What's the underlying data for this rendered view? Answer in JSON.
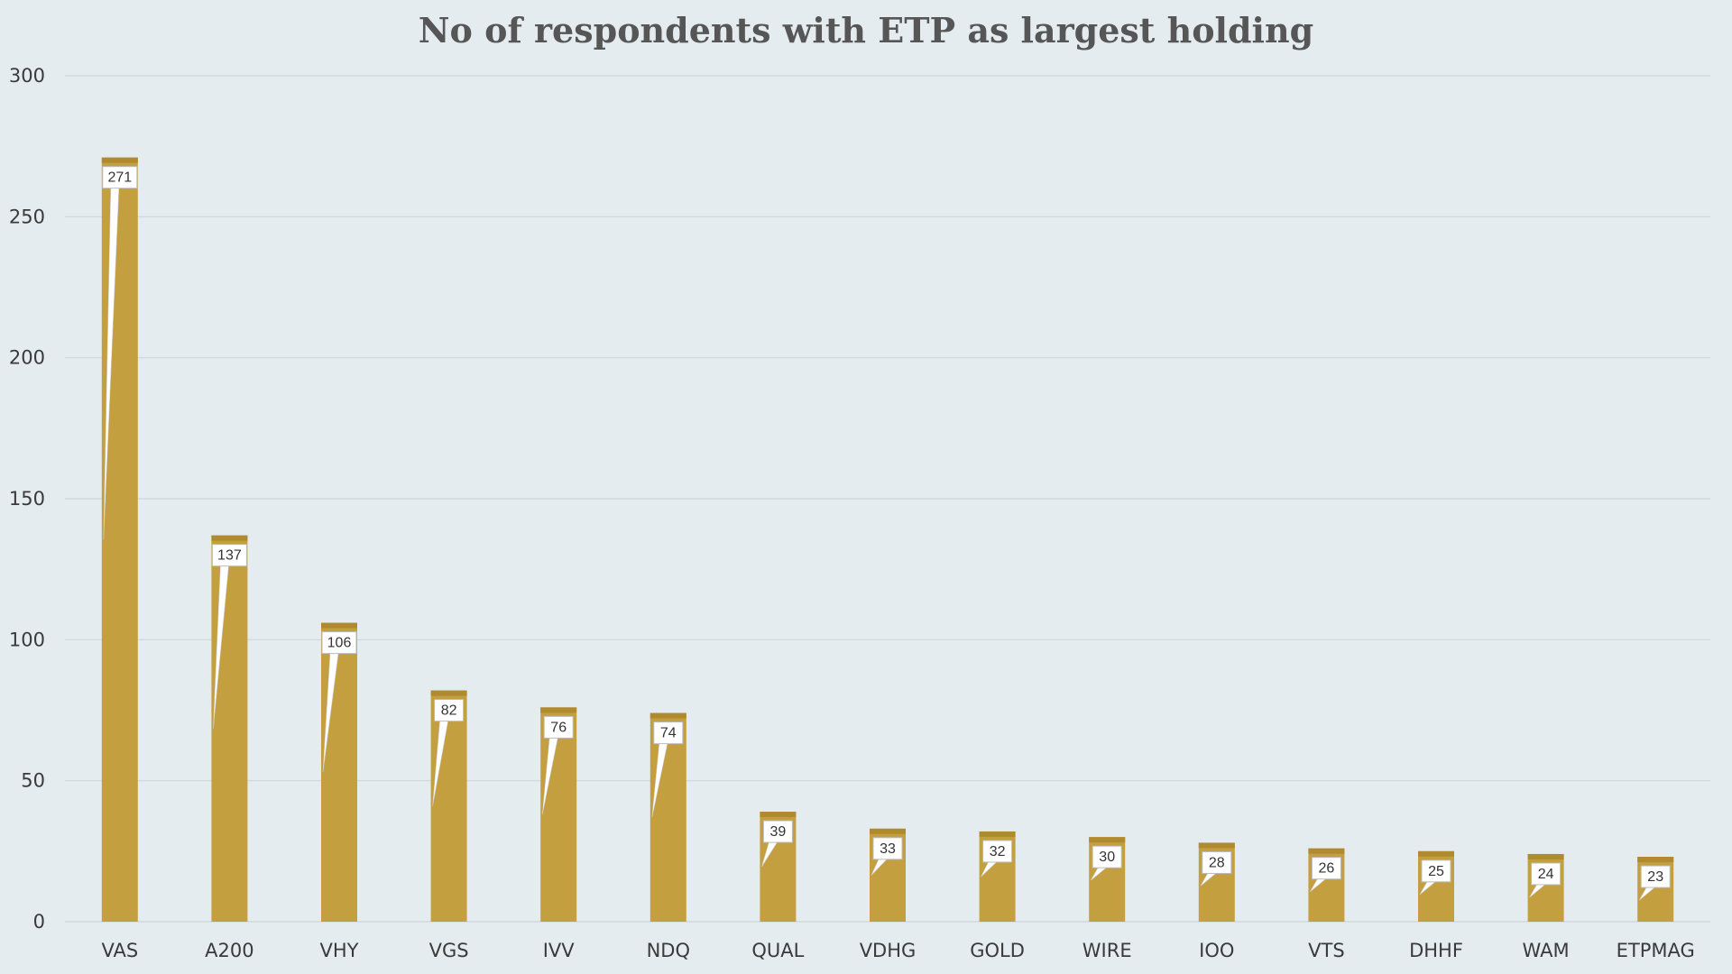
{
  "chart_data": {
    "type": "bar",
    "title": "No of respondents with ETP as largest holding",
    "xlabel": "",
    "ylabel": "",
    "categories": [
      "VAS",
      "A200",
      "VHY",
      "VGS",
      "IVV",
      "NDQ",
      "QUAL",
      "VDHG",
      "GOLD",
      "WIRE",
      "IOO",
      "VTS",
      "DHHF",
      "WAM",
      "ETPMAG"
    ],
    "values": [
      271,
      137,
      106,
      82,
      76,
      74,
      39,
      33,
      32,
      30,
      28,
      26,
      25,
      24,
      23
    ],
    "ylim": [
      0,
      300
    ],
    "yticks": [
      0,
      50,
      100,
      150,
      200,
      250,
      300
    ],
    "grid": true,
    "legend": "none",
    "bar_color": "#c49f3f",
    "bar_top_color": "#b08a2e",
    "background_color": "#e5ecf0",
    "gridline_color": "#cfd6da"
  }
}
